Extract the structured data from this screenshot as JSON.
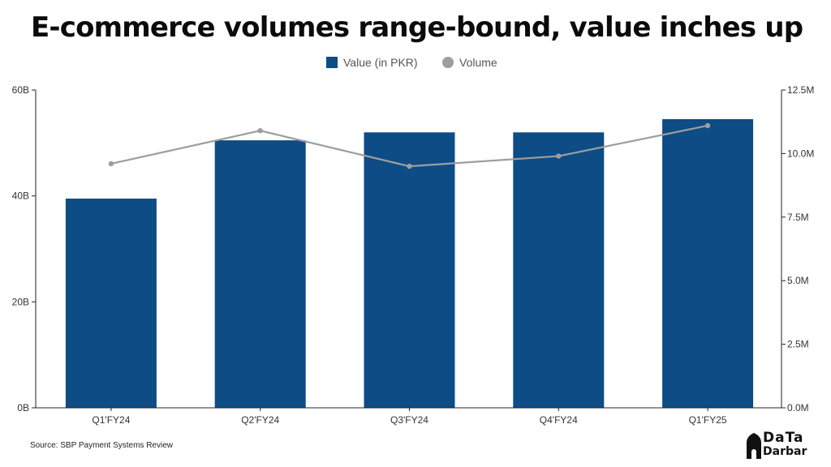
{
  "title": "E-commerce volumes range-bound, value inches up",
  "source": "Source: SBP Payment Systems Review",
  "logo": {
    "line1": "DaTa",
    "line2": "Darbar"
  },
  "chart_data": {
    "type": "bar",
    "categories": [
      "Q1'FY24",
      "Q2'FY24",
      "Q3'FY24",
      "Q4'FY24",
      "Q1'FY25"
    ],
    "series": [
      {
        "name": "Value (in PKR)",
        "type": "bar",
        "axis": "left",
        "color": "#0d4c85",
        "values": [
          39.5,
          50.5,
          52.0,
          52.0,
          54.5
        ]
      },
      {
        "name": "Volume",
        "type": "line",
        "axis": "right",
        "color": "#9e9e9e",
        "values": [
          9.6,
          10.9,
          9.5,
          9.9,
          11.1
        ]
      }
    ],
    "y_left": {
      "ylim": [
        0,
        60
      ],
      "ticks": [
        0,
        20,
        40,
        60
      ],
      "tick_labels": [
        "0B",
        "20B",
        "40B",
        "60B"
      ]
    },
    "y_right": {
      "ylim": [
        0,
        12.5
      ],
      "ticks": [
        0,
        2.5,
        5,
        7.5,
        10,
        12.5
      ],
      "tick_labels": [
        "0.0M",
        "2.5M",
        "5.0M",
        "7.5M",
        "10.0M",
        "12.5M"
      ]
    },
    "legend": "top-center",
    "grid": false
  }
}
